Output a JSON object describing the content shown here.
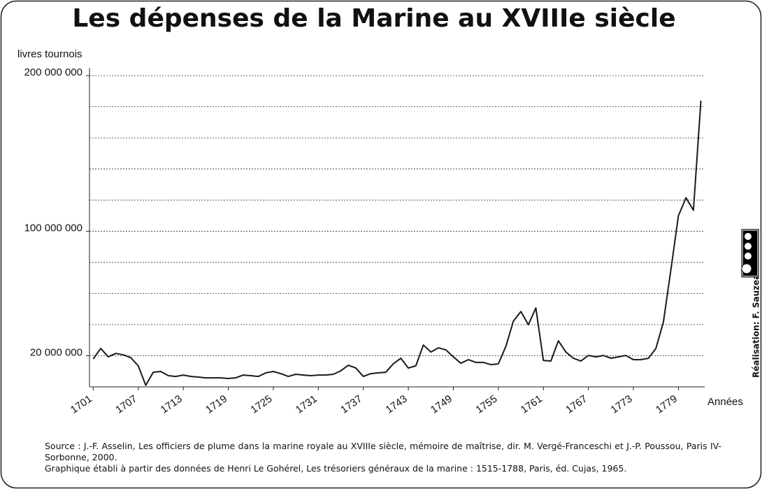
{
  "chart_data": {
    "type": "line",
    "title": "Les dépenses de la Marine au XVIIIe siècle",
    "y_label": "livres tournois",
    "x_label": "Années",
    "credit": "Réalisation: F. Sauzeau",
    "source": "Source : J.-F. Asselin, Les officiers de plume dans la marine royale au XVIIIe siècle, mémoire de maîtrise, dir. M. Vergé-Franceschi et J.-P. Poussou, Paris IV-Sorbonne, 2000.",
    "note": "Graphique établi à partir des données de Henri Le Gohérel, Les trésoriers généraux de la marine : 1515-1788, Paris, éd. Cujas, 1965.",
    "color": "#1a1a1a",
    "x": [
      1701,
      1702,
      1703,
      1704,
      1705,
      1706,
      1707,
      1708,
      1709,
      1710,
      1711,
      1712,
      1713,
      1714,
      1715,
      1716,
      1717,
      1718,
      1719,
      1720,
      1721,
      1722,
      1723,
      1724,
      1725,
      1726,
      1727,
      1728,
      1729,
      1730,
      1731,
      1732,
      1733,
      1734,
      1735,
      1736,
      1737,
      1738,
      1739,
      1740,
      1741,
      1742,
      1743,
      1744,
      1745,
      1746,
      1747,
      1748,
      1749,
      1750,
      1751,
      1752,
      1753,
      1754,
      1755,
      1756,
      1757,
      1758,
      1759,
      1760,
      1761,
      1762,
      1763,
      1764,
      1765,
      1766,
      1767,
      1768,
      1769,
      1770,
      1771,
      1772,
      1773,
      1774,
      1775,
      1776,
      1777,
      1778,
      1779,
      1780,
      1781,
      1782
    ],
    "values": [
      18000000,
      24700000,
      19300000,
      21500000,
      20600000,
      18800000,
      13500000,
      1000000,
      9400000,
      9900000,
      7200000,
      6700000,
      7600000,
      6700000,
      6300000,
      5800000,
      5800000,
      5800000,
      5400000,
      5800000,
      7600000,
      7200000,
      6700000,
      9000000,
      9900000,
      8500000,
      6700000,
      8100000,
      7600000,
      7200000,
      7600000,
      7600000,
      8100000,
      10300000,
      13900000,
      12100000,
      6700000,
      8500000,
      9000000,
      9400000,
      14800000,
      18400000,
      12100000,
      13500000,
      26900000,
      22400000,
      25100000,
      23800000,
      19300000,
      15200000,
      17500000,
      15700000,
      15700000,
      14300000,
      14800000,
      26000000,
      42200000,
      48400000,
      39900000,
      50700000,
      17000000,
      16600000,
      29600000,
      22400000,
      18400000,
      16600000,
      20200000,
      19300000,
      20200000,
      18400000,
      19300000,
      20200000,
      17500000,
      17500000,
      18400000,
      24700000,
      41700000,
      75300000,
      109900000,
      121500000,
      113500000,
      183900000
    ],
    "xlim": [
      1700.5,
      1782.5
    ],
    "xticks": [
      1701,
      1707,
      1713,
      1719,
      1725,
      1731,
      1737,
      1743,
      1749,
      1755,
      1761,
      1767,
      1773,
      1779
    ],
    "ylim": [
      0,
      205000000
    ],
    "yticks": [
      {
        "value": 20000000,
        "label": "20 000 000"
      },
      {
        "value": 100000000,
        "label": "100 000 000"
      },
      {
        "value": 200000000,
        "label": "200 000 000"
      }
    ],
    "grid_lines": [
      20000000,
      40000000,
      60000000,
      80000000,
      100000000,
      120000000,
      140000000,
      160000000,
      180000000,
      200000000
    ],
    "grid": true
  }
}
